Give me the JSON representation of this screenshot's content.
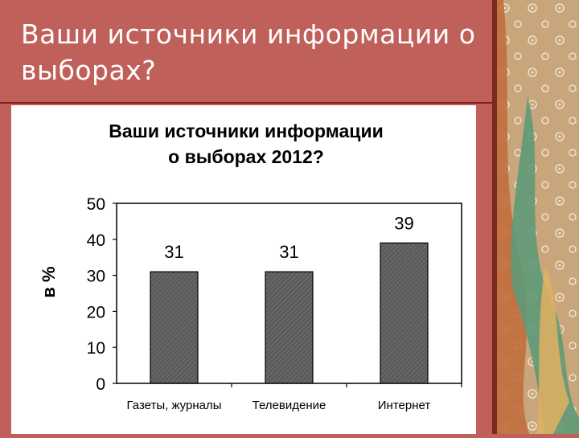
{
  "slide": {
    "title": "Ваши источники информации о выборах?"
  },
  "chart_data": {
    "type": "bar",
    "title": "Ваши источники информации о выборах 2012?",
    "title_lines": [
      "Ваши источники информации",
      "о выборах 2012?"
    ],
    "ylabel": "в %",
    "xlabel": "",
    "categories": [
      "Газеты, журналы",
      "Телевидение",
      "Интернет"
    ],
    "values": [
      31,
      31,
      39
    ],
    "ylim": [
      0,
      50
    ],
    "yticks": [
      "0",
      "10",
      "20",
      "30",
      "40",
      "50"
    ],
    "grid": false,
    "legend": "none",
    "bar_color": "#555555"
  }
}
